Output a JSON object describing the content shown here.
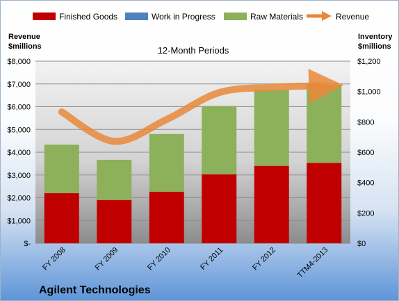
{
  "chart_data": {
    "type": "bar",
    "subtitle": "12-Month Periods",
    "categories": [
      "FY 2008",
      "FY 2009",
      "FY 2010",
      "FY 2011",
      "FY 2012",
      "TTM4-2013"
    ],
    "series": [
      {
        "name": "Finished Goods",
        "axis": "right",
        "stack": "inventory",
        "color": "#c00000",
        "values": [
          330,
          285,
          340,
          455,
          510,
          530
        ]
      },
      {
        "name": "Work in Progress",
        "axis": "right",
        "stack": "inventory",
        "color": "#4f81bd",
        "values": [
          0,
          0,
          0,
          0,
          0,
          0
        ]
      },
      {
        "name": "Raw Materials",
        "axis": "right",
        "stack": "inventory",
        "color": "#8db05a",
        "values": [
          320,
          265,
          380,
          450,
          500,
          515
        ]
      },
      {
        "name": "Revenue",
        "type": "line",
        "axis": "left",
        "color": "#e9883a",
        "values": [
          5770,
          4480,
          5440,
          6620,
          6850,
          6920
        ]
      }
    ],
    "left_axis": {
      "title_line1": "Revenue",
      "title_line2": "$millions",
      "range": [
        0,
        8000
      ],
      "ticks": [
        "$-",
        "$1,000",
        "$2,000",
        "$3,000",
        "$4,000",
        "$5,000",
        "$6,000",
        "$7,000",
        "$8,000"
      ]
    },
    "right_axis": {
      "title_line1": "Inventory",
      "title_line2": "$millions",
      "range": [
        0,
        1200
      ],
      "ticks": [
        "$0",
        "$200",
        "$400",
        "$600",
        "$800",
        "$1,000",
        "$1,200"
      ]
    },
    "grid": true,
    "legend_position": "top"
  },
  "company": "Agilent Technologies"
}
